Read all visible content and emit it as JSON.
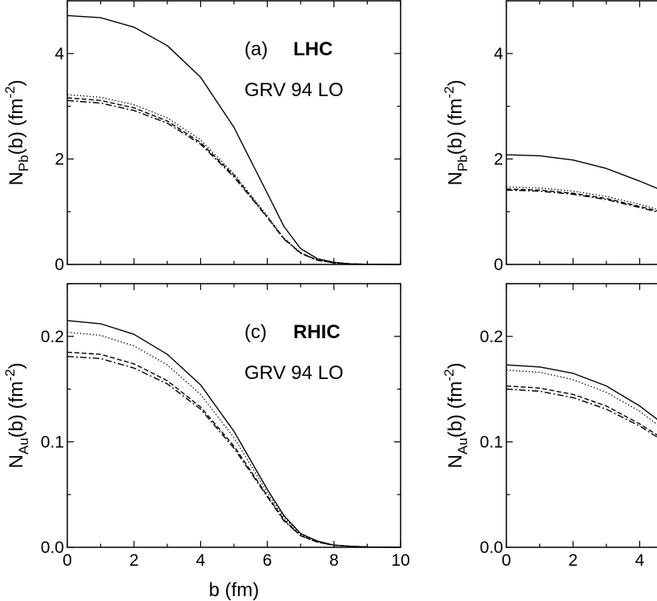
{
  "chart_data": [
    {
      "id": "a",
      "type": "line",
      "panel_tag": "(a)",
      "collider": "LHC",
      "pdf_label": "GRV 94 LO",
      "ylabel_main": "N",
      "ylabel_sub": "Pb",
      "ylabel_arg": "(b)",
      "ylabel_unit_pre": "(fm",
      "ylabel_unit_exp": "-2",
      "ylabel_unit_post": ")",
      "xlim": [
        0,
        10
      ],
      "ylim": [
        0,
        5
      ],
      "x_ticks": [
        0,
        2,
        4,
        6,
        8,
        10
      ],
      "y_ticks": [
        0,
        2,
        4
      ],
      "y_tick_labels": [
        "0",
        "2",
        "4"
      ],
      "series": [
        {
          "name": "solid",
          "style": "solid",
          "x": [
            0,
            1,
            2,
            3,
            4,
            5,
            6,
            6.5,
            7,
            7.5,
            8,
            8.5,
            9,
            10
          ],
          "y": [
            4.72,
            4.68,
            4.5,
            4.15,
            3.55,
            2.6,
            1.35,
            0.72,
            0.3,
            0.11,
            0.04,
            0.01,
            0.003,
            0
          ]
        },
        {
          "name": "dotted",
          "style": "dotted",
          "x": [
            0,
            1,
            2,
            3,
            4,
            5,
            6,
            6.5,
            7,
            7.5,
            8,
            8.5,
            9,
            10
          ],
          "y": [
            3.22,
            3.17,
            3.03,
            2.78,
            2.36,
            1.72,
            0.92,
            0.5,
            0.22,
            0.09,
            0.03,
            0.01,
            0.003,
            0
          ]
        },
        {
          "name": "dashed",
          "style": "dashed",
          "x": [
            0,
            1,
            2,
            3,
            4,
            5,
            6,
            6.5,
            7,
            7.5,
            8,
            8.5,
            9,
            10
          ],
          "y": [
            3.16,
            3.11,
            2.97,
            2.72,
            2.31,
            1.69,
            0.9,
            0.49,
            0.22,
            0.08,
            0.03,
            0.01,
            0.003,
            0
          ]
        },
        {
          "name": "dash-dot",
          "style": "dashdot",
          "x": [
            0,
            1,
            2,
            3,
            4,
            5,
            6,
            6.5,
            7,
            7.5,
            8,
            8.5,
            9,
            10
          ],
          "y": [
            3.11,
            3.06,
            2.92,
            2.68,
            2.28,
            1.66,
            0.89,
            0.48,
            0.21,
            0.08,
            0.03,
            0.01,
            0.003,
            0
          ]
        }
      ]
    },
    {
      "id": "b",
      "type": "line",
      "ylabel_main": "N",
      "ylabel_sub": "Pb",
      "ylabel_arg": "(b)",
      "ylabel_unit_pre": "(fm",
      "ylabel_unit_exp": "-2",
      "ylabel_unit_post": ")",
      "xlim": [
        0,
        10
      ],
      "ylim": [
        0,
        5
      ],
      "x_ticks": [
        0,
        2,
        4,
        6,
        8,
        10
      ],
      "y_ticks": [
        0,
        2,
        4
      ],
      "y_tick_labels": [
        "0",
        "2",
        "4"
      ],
      "series": [
        {
          "name": "solid",
          "style": "solid",
          "x": [
            0,
            1,
            2,
            3,
            4,
            4.5,
            5
          ],
          "y": [
            2.08,
            2.06,
            1.98,
            1.82,
            1.58,
            1.45,
            1.3
          ]
        },
        {
          "name": "dotted",
          "style": "dotted",
          "x": [
            0,
            1,
            2,
            3,
            4,
            4.5,
            5
          ],
          "y": [
            1.47,
            1.45,
            1.39,
            1.29,
            1.14,
            1.05,
            0.95
          ]
        },
        {
          "name": "dashed",
          "style": "dashed",
          "x": [
            0,
            1,
            2,
            3,
            4,
            4.5,
            5
          ],
          "y": [
            1.43,
            1.41,
            1.35,
            1.25,
            1.1,
            1.02,
            0.93
          ]
        },
        {
          "name": "dash-dot",
          "style": "dashdot",
          "x": [
            0,
            1,
            2,
            3,
            4,
            4.5,
            5
          ],
          "y": [
            1.41,
            1.39,
            1.33,
            1.23,
            1.08,
            1.0,
            0.91
          ]
        }
      ]
    },
    {
      "id": "c",
      "type": "line",
      "panel_tag": "(c)",
      "collider": "RHIC",
      "pdf_label": "GRV 94 LO",
      "ylabel_main": "N",
      "ylabel_sub": "Au",
      "ylabel_arg": "(b)",
      "ylabel_unit_pre": "(fm",
      "ylabel_unit_exp": "-2",
      "ylabel_unit_post": ")",
      "xlabel": "b (fm)",
      "xlim": [
        0,
        10
      ],
      "ylim": [
        0,
        0.25
      ],
      "x_ticks": [
        0,
        2,
        4,
        6,
        8,
        10
      ],
      "x_tick_labels": [
        "0",
        "2",
        "4",
        "6",
        "8",
        "10"
      ],
      "y_ticks": [
        0,
        0.1,
        0.2
      ],
      "y_tick_labels": [
        "0.0",
        "0.1",
        "0.2"
      ],
      "series": [
        {
          "name": "solid",
          "style": "solid",
          "x": [
            0,
            1,
            2,
            3,
            4,
            5,
            6,
            6.5,
            7,
            7.5,
            8,
            8.5,
            9,
            10
          ],
          "y": [
            0.215,
            0.212,
            0.202,
            0.183,
            0.154,
            0.11,
            0.055,
            0.03,
            0.013,
            0.006,
            0.002,
            0.001,
            0.0003,
            0
          ]
        },
        {
          "name": "dotted",
          "style": "dotted",
          "x": [
            0,
            1,
            2,
            3,
            4,
            5,
            6,
            6.5,
            7,
            7.5,
            8,
            8.5,
            9,
            10
          ],
          "y": [
            0.204,
            0.201,
            0.191,
            0.173,
            0.145,
            0.104,
            0.052,
            0.028,
            0.012,
            0.005,
            0.002,
            0.001,
            0.0003,
            0
          ]
        },
        {
          "name": "dashed",
          "style": "dashed",
          "x": [
            0,
            1,
            2,
            3,
            4,
            5,
            6,
            6.5,
            7,
            7.5,
            8,
            8.5,
            9,
            10
          ],
          "y": [
            0.185,
            0.183,
            0.174,
            0.158,
            0.133,
            0.096,
            0.049,
            0.026,
            0.011,
            0.005,
            0.002,
            0.001,
            0.0003,
            0
          ]
        },
        {
          "name": "dash-dot",
          "style": "dashdot",
          "x": [
            0,
            1,
            2,
            3,
            4,
            5,
            6,
            6.5,
            7,
            7.5,
            8,
            8.5,
            9,
            10
          ],
          "y": [
            0.181,
            0.179,
            0.17,
            0.155,
            0.131,
            0.094,
            0.048,
            0.025,
            0.011,
            0.005,
            0.002,
            0.001,
            0.0003,
            0
          ]
        }
      ]
    },
    {
      "id": "d",
      "type": "line",
      "ylabel_main": "N",
      "ylabel_sub": "Au",
      "ylabel_arg": "(b)",
      "ylabel_unit_pre": "(fm",
      "ylabel_unit_exp": "-2",
      "ylabel_unit_post": ")",
      "xlabel": "b",
      "xlim": [
        0,
        10
      ],
      "ylim": [
        0,
        0.25
      ],
      "x_ticks": [
        0,
        2,
        4
      ],
      "x_tick_labels": [
        "0",
        "2",
        "4"
      ],
      "y_ticks": [
        0,
        0.1,
        0.2
      ],
      "y_tick_labels": [
        "0.0",
        "0.1",
        "0.2"
      ],
      "series": [
        {
          "name": "solid",
          "style": "solid",
          "x": [
            0,
            1,
            2,
            3,
            4,
            4.5,
            5
          ],
          "y": [
            0.173,
            0.171,
            0.165,
            0.153,
            0.134,
            0.122,
            0.108
          ]
        },
        {
          "name": "dotted",
          "style": "dotted",
          "x": [
            0,
            1,
            2,
            3,
            4,
            4.5,
            5
          ],
          "y": [
            0.168,
            0.166,
            0.159,
            0.147,
            0.129,
            0.117,
            0.104
          ]
        },
        {
          "name": "dashed",
          "style": "dashed",
          "x": [
            0,
            1,
            2,
            3,
            4,
            4.5,
            5
          ],
          "y": [
            0.153,
            0.151,
            0.145,
            0.134,
            0.117,
            0.107,
            0.095
          ]
        },
        {
          "name": "dash-dot",
          "style": "dashdot",
          "x": [
            0,
            1,
            2,
            3,
            4,
            4.5,
            5
          ],
          "y": [
            0.15,
            0.148,
            0.142,
            0.131,
            0.115,
            0.105,
            0.093
          ]
        }
      ]
    }
  ]
}
